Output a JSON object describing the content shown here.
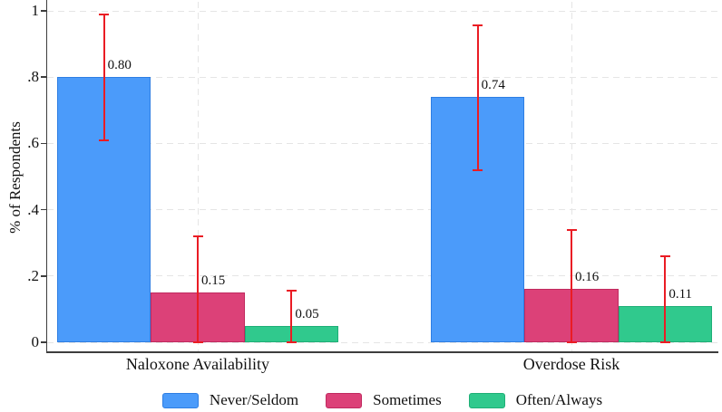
{
  "chart_data": {
    "type": "bar",
    "title": "",
    "ylabel": "% of Respondents",
    "ylim": [
      0,
      1
    ],
    "ytick_values": [
      0,
      0.2,
      0.4,
      0.6,
      0.8,
      1
    ],
    "ytick_labels": [
      "0",
      ".2",
      ".4",
      ".6",
      ".8",
      "1"
    ],
    "categories": [
      "Naloxone Availability",
      "Overdose Risk"
    ],
    "series": [
      {
        "name": "Never/Seldom",
        "color": "#4B9BFA",
        "border_color": "#2E7EE3",
        "values": [
          0.8,
          0.74
        ],
        "ci_low": [
          0.61,
          0.52
        ],
        "ci_high": [
          0.99,
          0.955
        ],
        "value_labels": [
          "0.80",
          "0.74"
        ]
      },
      {
        "name": "Sometimes",
        "color": "#DC4178",
        "border_color": "#C02A5F",
        "values": [
          0.15,
          0.16
        ],
        "ci_low": [
          0.0,
          0.0
        ],
        "ci_high": [
          0.32,
          0.34
        ],
        "value_labels": [
          "0.15",
          "0.16"
        ]
      },
      {
        "name": "Often/Always",
        "color": "#30C98D",
        "border_color": "#1FAF77",
        "values": [
          0.05,
          0.11
        ],
        "ci_low": [
          0.0,
          0.0
        ],
        "ci_high": [
          0.155,
          0.26
        ],
        "value_labels": [
          "0.05",
          "0.11"
        ]
      }
    ],
    "error_bar_color": "#EA1C24",
    "grid": {
      "horizontal": "dashed-at-yticks",
      "vertical": "dashed-at-category-centers",
      "color": "#E5E5E5"
    },
    "legend": {
      "position": "bottom"
    }
  }
}
